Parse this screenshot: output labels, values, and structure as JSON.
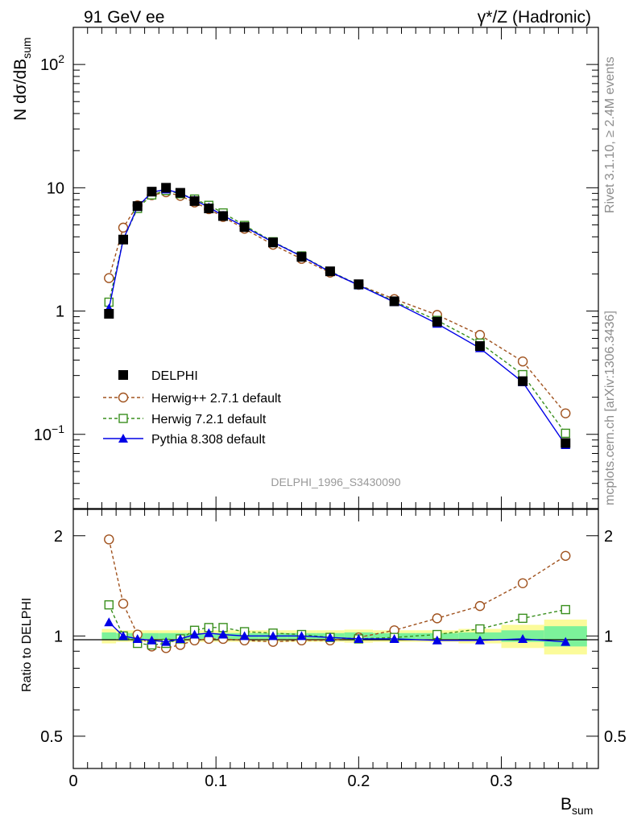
{
  "header": {
    "energy_label": "91 GeV ee",
    "process_label": "γ*/Z (Hadronic)"
  },
  "side_labels": {
    "rivet": "Rivet 3.1.10, ≥ 2.4M events",
    "mcplots": "mcplots.cern.ch [arXiv:1306.3436]"
  },
  "analysis_id": "DELPHI_1996_S3430090",
  "colors": {
    "data": "#000000",
    "herwigpp": "#a0521e",
    "herwig7": "#3a8f1e",
    "pythia": "#0000e6",
    "band_inner": "#7cf29a",
    "band_outer": "#fbfb9a"
  },
  "chart_data": [
    {
      "type": "scatter",
      "panel": "main",
      "ylabel_main": "N dσ/dB",
      "ylabel_sub": "sum",
      "xlabel_main": "B",
      "xlabel_sub": "sum",
      "yscale": "log",
      "xlim": [
        0,
        0.368
      ],
      "ylim": [
        0.025,
        200
      ],
      "y_ticks": [
        {
          "v": 100,
          "base": "10",
          "exp": "2"
        },
        {
          "v": 10,
          "base": "10",
          "exp": ""
        },
        {
          "v": 1,
          "base": "1",
          "exp": ""
        },
        {
          "v": 0.1,
          "base": "10",
          "exp": "−1"
        }
      ],
      "x": [
        0.025,
        0.035,
        0.045,
        0.055,
        0.065,
        0.075,
        0.085,
        0.095,
        0.105,
        0.12,
        0.14,
        0.16,
        0.18,
        0.2,
        0.225,
        0.255,
        0.285,
        0.315,
        0.345
      ],
      "series": [
        {
          "name": "DELPHI",
          "marker": "filled-square",
          "line": "none",
          "values": [
            0.95,
            3.8,
            7.1,
            9.3,
            10.0,
            9.1,
            7.8,
            6.8,
            5.9,
            4.8,
            3.6,
            2.75,
            2.1,
            1.65,
            1.2,
            0.82,
            0.52,
            0.27,
            0.085
          ]
        },
        {
          "name": "Herwig++ 2.7.1 default",
          "marker": "open-circle",
          "line": "dashed",
          "values": [
            1.85,
            4.75,
            7.2,
            8.7,
            9.2,
            8.6,
            7.6,
            6.7,
            5.8,
            4.65,
            3.45,
            2.65,
            2.05,
            1.63,
            1.25,
            0.93,
            0.64,
            0.39,
            0.148
          ]
        },
        {
          "name": "Herwig 7.2.1 default",
          "marker": "open-square",
          "line": "dashed",
          "values": [
            1.18,
            3.8,
            6.8,
            8.75,
            9.5,
            8.95,
            8.1,
            7.2,
            6.25,
            4.95,
            3.65,
            2.8,
            2.1,
            1.63,
            1.2,
            0.84,
            0.55,
            0.305,
            0.102
          ]
        },
        {
          "name": "Pythia 8.308 default",
          "marker": "filled-triangle",
          "line": "solid",
          "values": [
            1.05,
            3.8,
            7.0,
            9.2,
            9.7,
            9.0,
            7.95,
            6.95,
            5.95,
            4.82,
            3.62,
            2.78,
            2.08,
            1.62,
            1.18,
            0.79,
            0.5,
            0.265,
            0.082
          ]
        }
      ],
      "legend_position": "center-left"
    },
    {
      "type": "line",
      "panel": "ratio",
      "ylabel": "Ratio to DELPHI",
      "yscale": "log",
      "xlim": [
        0,
        0.368
      ],
      "ylim": [
        0.4,
        2.4
      ],
      "y_ticks": [
        0.5,
        1,
        2
      ],
      "x_ticks": [
        0,
        0.1,
        0.2,
        0.3
      ],
      "x": [
        0.025,
        0.035,
        0.045,
        0.055,
        0.065,
        0.075,
        0.085,
        0.095,
        0.105,
        0.12,
        0.14,
        0.16,
        0.18,
        0.2,
        0.225,
        0.255,
        0.285,
        0.315,
        0.345
      ],
      "band_edges": [
        0.02,
        0.03,
        0.04,
        0.05,
        0.06,
        0.07,
        0.08,
        0.09,
        0.1,
        0.11,
        0.13,
        0.15,
        0.17,
        0.19,
        0.21,
        0.24,
        0.27,
        0.3,
        0.33,
        0.36
      ],
      "band_inner": [
        0.025,
        0.02,
        0.02,
        0.02,
        0.02,
        0.02,
        0.02,
        0.02,
        0.02,
        0.02,
        0.02,
        0.02,
        0.02,
        0.025,
        0.02,
        0.02,
        0.025,
        0.04,
        0.07
      ],
      "band_outer": [
        0.05,
        0.04,
        0.04,
        0.04,
        0.04,
        0.04,
        0.04,
        0.04,
        0.04,
        0.04,
        0.04,
        0.04,
        0.04,
        0.045,
        0.04,
        0.04,
        0.05,
        0.08,
        0.12
      ],
      "series": [
        {
          "name": "Herwig++ 2.7.1 default",
          "values": [
            1.95,
            1.25,
            1.01,
            0.93,
            0.92,
            0.94,
            0.97,
            0.98,
            0.98,
            0.97,
            0.96,
            0.97,
            0.97,
            0.99,
            1.04,
            1.13,
            1.23,
            1.44,
            1.74
          ]
        },
        {
          "name": "Herwig 7.2.1 default",
          "values": [
            1.24,
            1.0,
            0.95,
            0.94,
            0.95,
            0.98,
            1.04,
            1.06,
            1.06,
            1.03,
            1.02,
            1.01,
            0.99,
            0.98,
            0.99,
            1.01,
            1.05,
            1.13,
            1.2
          ]
        },
        {
          "name": "Pythia 8.308 default",
          "values": [
            1.1,
            1.0,
            0.98,
            0.97,
            0.96,
            0.98,
            1.01,
            1.02,
            1.01,
            1.0,
            1.0,
            1.0,
            0.99,
            0.98,
            0.98,
            0.97,
            0.97,
            0.98,
            0.96
          ]
        }
      ]
    }
  ]
}
